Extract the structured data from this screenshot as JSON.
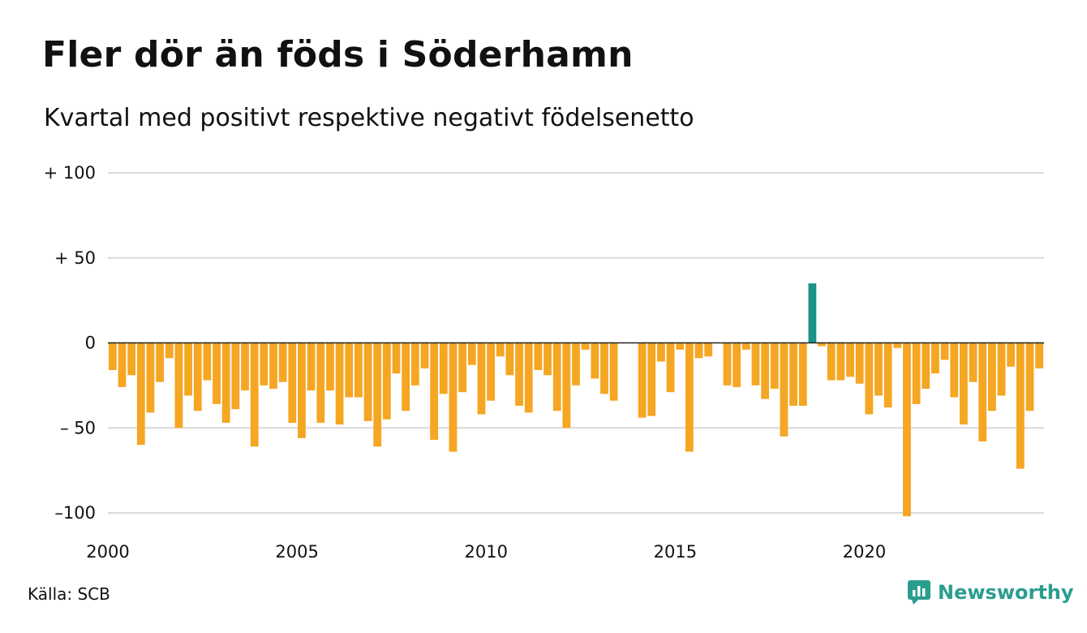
{
  "header": {
    "title": "Fler dör än föds i Söderhamn",
    "subtitle": "Kvartal med positivt respektive negativt födelsenetto"
  },
  "footer": {
    "source": "Källa: SCB",
    "brand": "Newsworthy",
    "brand_icon": "newsworthy-logo-icon"
  },
  "colors": {
    "negative": "#f5a623",
    "positive": "#1a9488",
    "grid": "#d9d9d9",
    "zero_line": "#222222",
    "brand": "#2a9d8f"
  },
  "chart_data": {
    "type": "bar",
    "title": "Fler dör än föds i Söderhamn",
    "subtitle": "Kvartal med positivt respektive negativt födelsenetto",
    "xlabel": "",
    "ylabel": "",
    "ylim": [
      -100,
      100
    ],
    "grid": true,
    "y_ticks": [
      {
        "value": 100,
        "label": "+ 100"
      },
      {
        "value": 50,
        "label": "+  50"
      },
      {
        "value": 0,
        "label": "0"
      },
      {
        "value": -50,
        "label": "– 50"
      },
      {
        "value": -100,
        "label": "–100"
      }
    ],
    "x_ticks": [
      {
        "year": 2000,
        "label": "2000"
      },
      {
        "year": 2005,
        "label": "2005"
      },
      {
        "year": 2010,
        "label": "2010"
      },
      {
        "year": 2015,
        "label": "2015"
      },
      {
        "year": 2020,
        "label": "2020"
      }
    ],
    "x_start": "2000 Q1",
    "categories": [
      "2000 Q1",
      "2000 Q2",
      "2000 Q3",
      "2000 Q4",
      "2001 Q1",
      "2001 Q2",
      "2001 Q3",
      "2001 Q4",
      "2002 Q1",
      "2002 Q2",
      "2002 Q3",
      "2002 Q4",
      "2003 Q1",
      "2003 Q2",
      "2003 Q3",
      "2003 Q4",
      "2004 Q1",
      "2004 Q2",
      "2004 Q3",
      "2004 Q4",
      "2005 Q1",
      "2005 Q2",
      "2005 Q3",
      "2005 Q4",
      "2006 Q1",
      "2006 Q2",
      "2006 Q3",
      "2006 Q4",
      "2007 Q1",
      "2007 Q2",
      "2007 Q3",
      "2007 Q4",
      "2008 Q1",
      "2008 Q2",
      "2008 Q3",
      "2008 Q4",
      "2009 Q1",
      "2009 Q2",
      "2009 Q3",
      "2009 Q4",
      "2010 Q1",
      "2010 Q2",
      "2010 Q3",
      "2010 Q4",
      "2011 Q1",
      "2011 Q2",
      "2011 Q3",
      "2011 Q4",
      "2012 Q1",
      "2012 Q2",
      "2012 Q3",
      "2012 Q4",
      "2013 Q1",
      "2013 Q2",
      "2013 Q3",
      "2013 Q4",
      "2014 Q1",
      "2014 Q2",
      "2014 Q3",
      "2014 Q4",
      "2015 Q1",
      "2015 Q2",
      "2015 Q3",
      "2015 Q4",
      "2016 Q1",
      "2016 Q2",
      "2016 Q3",
      "2016 Q4",
      "2017 Q1",
      "2017 Q2",
      "2017 Q3",
      "2017 Q4",
      "2018 Q1",
      "2018 Q2",
      "2018 Q3",
      "2018 Q4",
      "2019 Q1",
      "2019 Q2",
      "2019 Q3",
      "2019 Q4",
      "2020 Q1",
      "2020 Q2",
      "2020 Q3",
      "2020 Q4",
      "2021 Q1",
      "2021 Q2",
      "2021 Q3",
      "2021 Q4",
      "2022 Q1",
      "2022 Q2",
      "2022 Q3",
      "2022 Q4",
      "2023 Q1",
      "2023 Q2",
      "2023 Q3",
      "2023 Q4",
      "2024 Q1",
      "2024 Q2",
      "2024 Q3"
    ],
    "values": [
      -16,
      -26,
      -19,
      -60,
      -41,
      -23,
      -9,
      -50,
      -31,
      -40,
      -22,
      -36,
      -47,
      -39,
      -28,
      -61,
      -25,
      -27,
      -23,
      -47,
      -56,
      -28,
      -47,
      -28,
      -48,
      -32,
      -32,
      -46,
      -61,
      -45,
      -18,
      -40,
      -25,
      -15,
      -57,
      -30,
      -64,
      -29,
      -13,
      -42,
      -34,
      -8,
      -19,
      -37,
      -41,
      -16,
      -19,
      -40,
      -50,
      -25,
      -4,
      -21,
      -30,
      -34,
      0,
      0,
      -44,
      -43,
      -11,
      -29,
      -4,
      -64,
      -9,
      -8,
      0,
      -25,
      -26,
      -4,
      -25,
      -33,
      -27,
      -55,
      -37,
      -37,
      35,
      -2,
      -22,
      -22,
      -20,
      -24,
      -42,
      -31,
      -38,
      -3,
      -102,
      -36,
      -27,
      -18,
      -10,
      -32,
      -48,
      -23,
      -58,
      -40,
      -31,
      -14,
      -74,
      -40,
      -15
    ]
  }
}
